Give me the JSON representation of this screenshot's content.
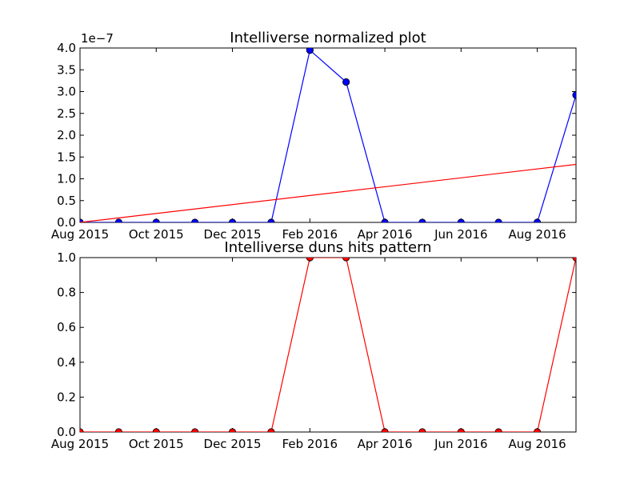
{
  "chart_data": [
    {
      "type": "line",
      "title": "Intelliverse normalized plot",
      "offset_label": "1e−7",
      "x_tick_labels": [
        "Aug 2015",
        "Oct 2015",
        "Dec 2015",
        "Feb 2016",
        "Apr 2016",
        "Jun 2016",
        "Aug 2016"
      ],
      "y_tick_labels": [
        "0.0",
        "0.5",
        "1.0",
        "1.5",
        "2.0",
        "2.5",
        "3.0",
        "3.5",
        "4.0"
      ],
      "xlim": [
        "2015-08-01",
        "2016-09-01"
      ],
      "ylim": [
        0,
        4e-07
      ],
      "series": [
        {
          "color": "#0000ff",
          "marker": "circle",
          "x": [
            "2015-08-01",
            "2015-09-01",
            "2015-10-01",
            "2015-11-01",
            "2015-12-01",
            "2016-01-01",
            "2016-02-01",
            "2016-03-01",
            "2016-04-01",
            "2016-05-01",
            "2016-06-01",
            "2016-07-01",
            "2016-08-01",
            "2016-09-01"
          ],
          "y": [
            0,
            0,
            0,
            0,
            0,
            0,
            3.95e-07,
            3.22e-07,
            0,
            0,
            0,
            0,
            0,
            2.92e-07
          ]
        },
        {
          "color": "#ff0000",
          "marker": "none",
          "x": [
            "2015-08-01",
            "2016-09-01"
          ],
          "y": [
            0,
            1.33e-07
          ]
        }
      ]
    },
    {
      "type": "line",
      "title": "Intelliverse duns hits pattern",
      "x_tick_labels": [
        "Aug 2015",
        "Oct 2015",
        "Dec 2015",
        "Feb 2016",
        "Apr 2016",
        "Jun 2016",
        "Aug 2016"
      ],
      "y_tick_labels": [
        "0.0",
        "0.2",
        "0.4",
        "0.6",
        "0.8",
        "1.0"
      ],
      "xlim": [
        "2015-08-01",
        "2016-09-01"
      ],
      "ylim": [
        0,
        1.0
      ],
      "series": [
        {
          "color": "#ff0000",
          "marker": "circle",
          "x": [
            "2015-08-01",
            "2015-09-01",
            "2015-10-01",
            "2015-11-01",
            "2015-12-01",
            "2016-01-01",
            "2016-02-01",
            "2016-03-01",
            "2016-04-01",
            "2016-05-01",
            "2016-06-01",
            "2016-07-01",
            "2016-08-01",
            "2016-09-01"
          ],
          "y": [
            0,
            0,
            0,
            0,
            0,
            0,
            1,
            1,
            0,
            0,
            0,
            0,
            0,
            1
          ]
        }
      ]
    }
  ]
}
